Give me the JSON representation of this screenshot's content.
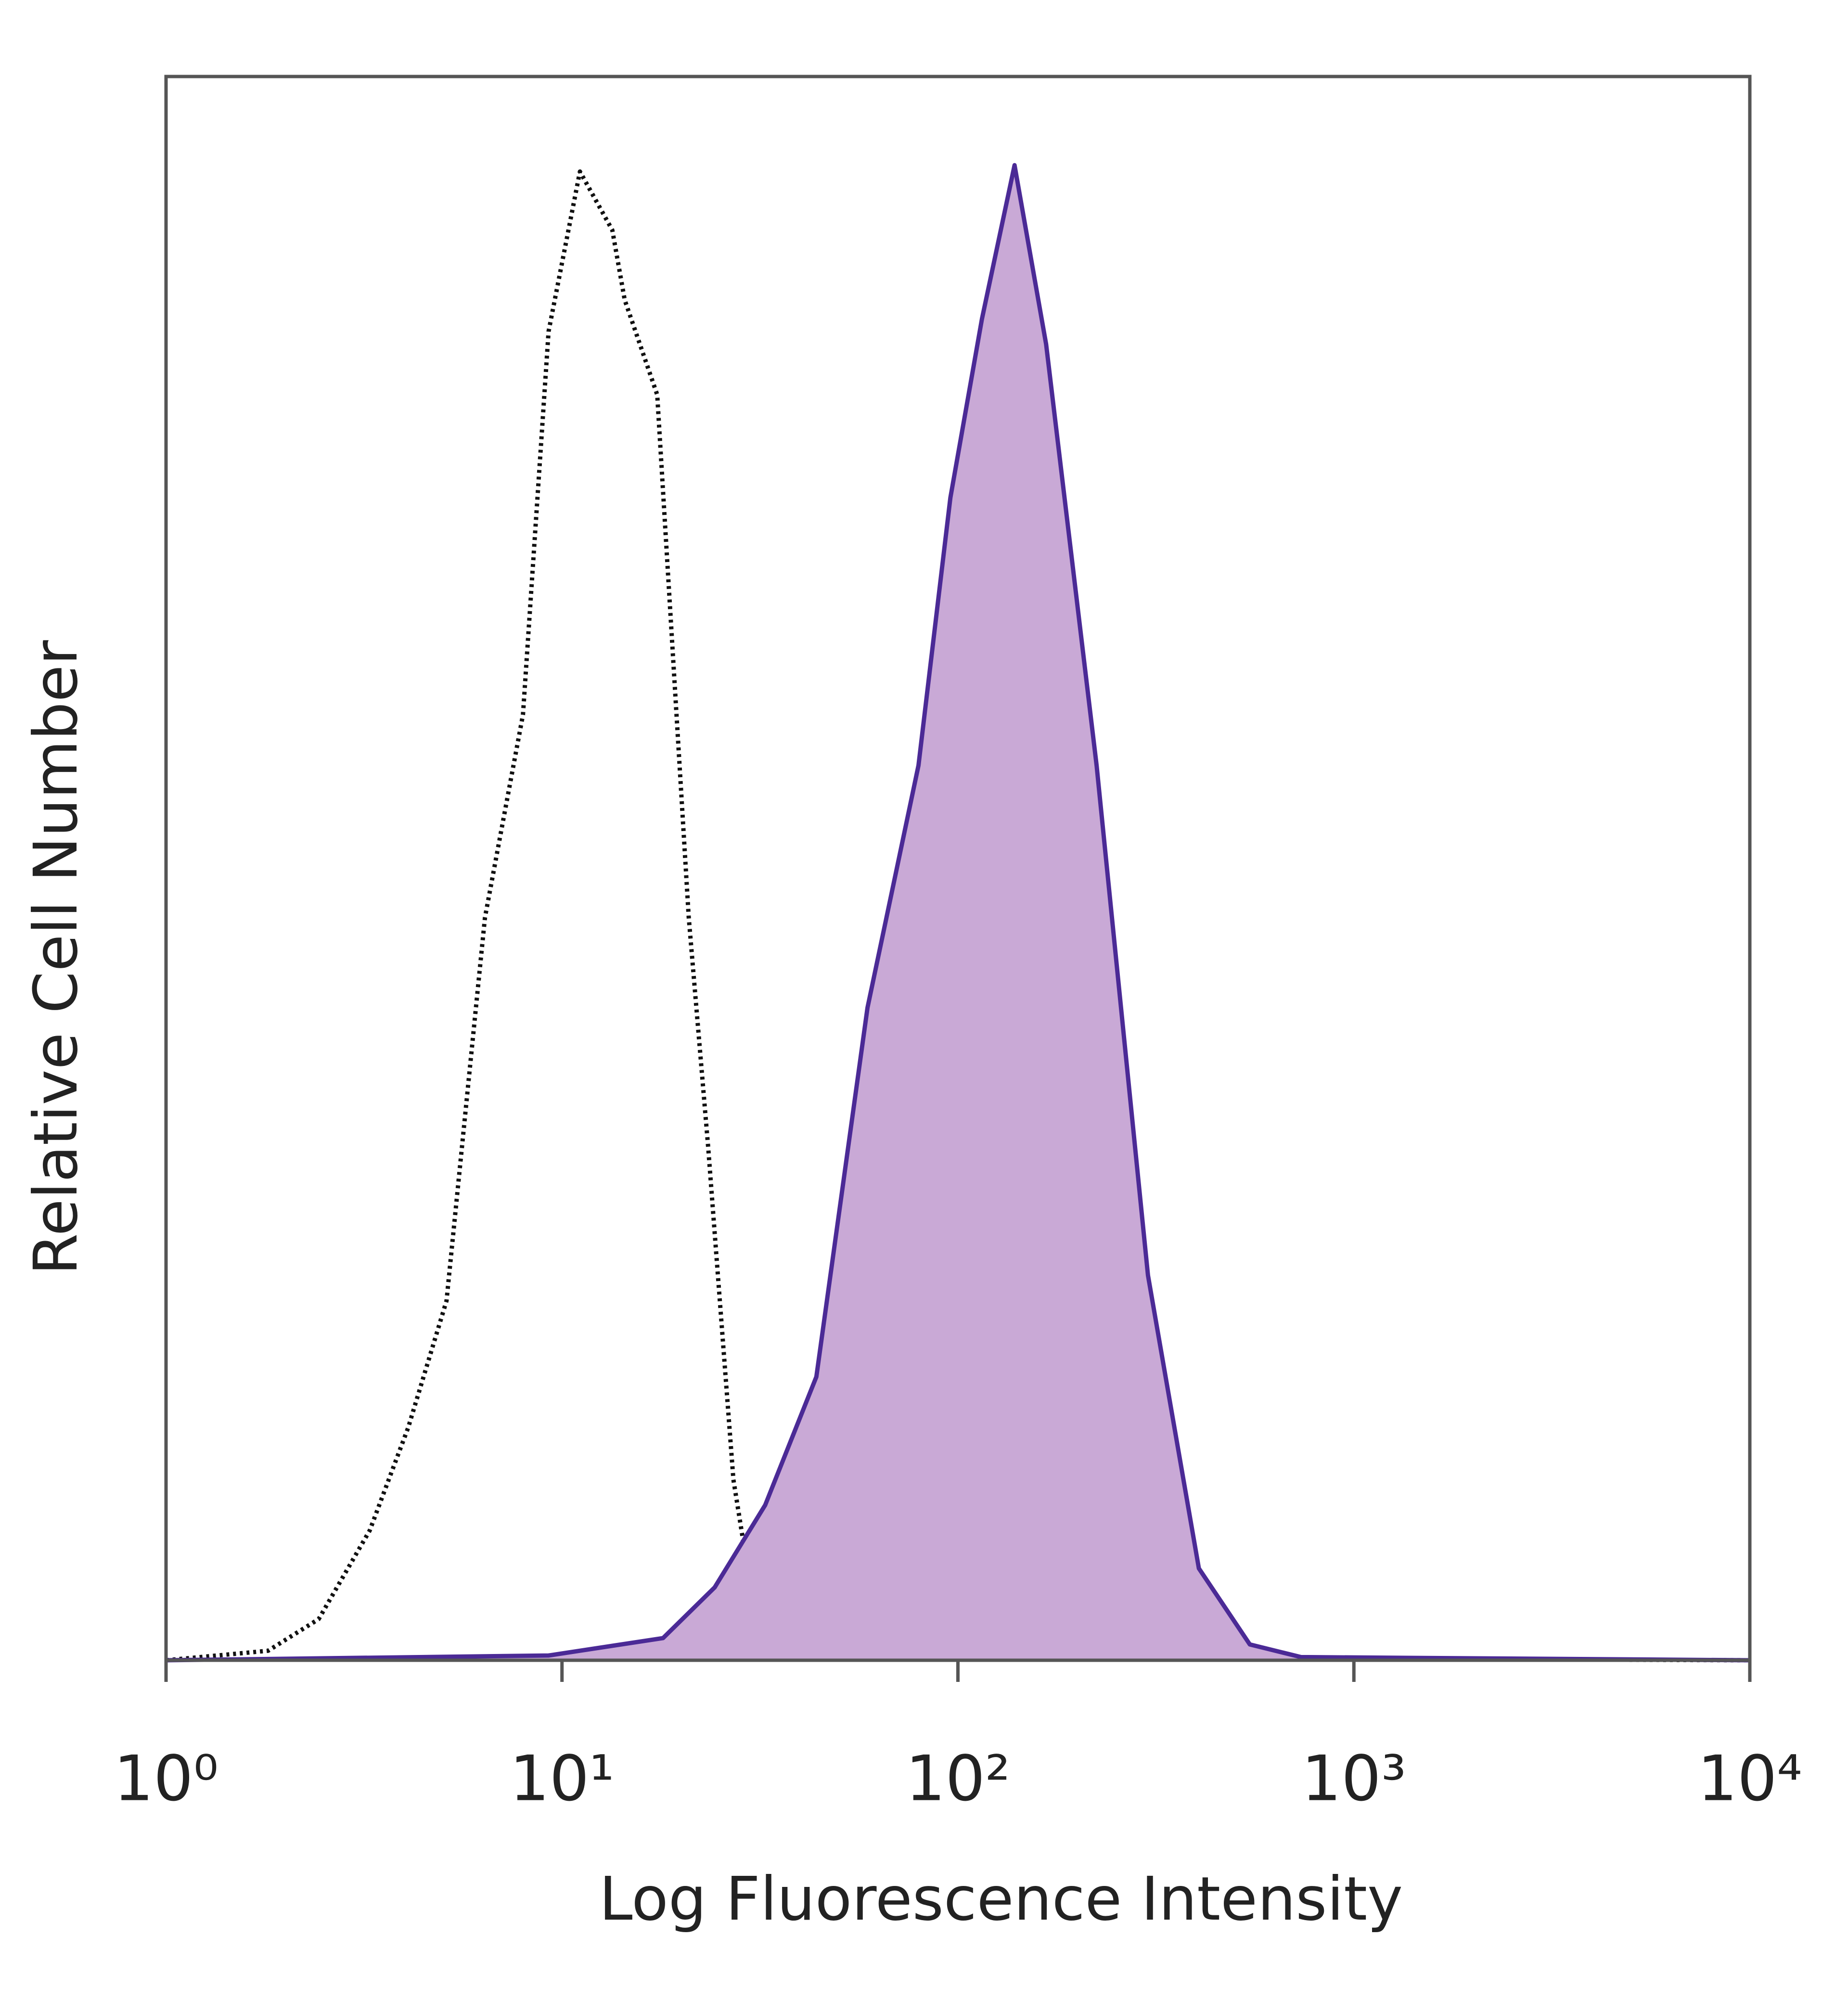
{
  "chart_data": {
    "type": "histogram-line",
    "x_label": "Log Fluorescence Intensity",
    "y_label": "Relative Cell Number",
    "xscale": "log",
    "xlim": [
      1,
      10000
    ],
    "xticks": [
      {
        "value": 1,
        "label": "10⁰"
      },
      {
        "value": 10,
        "label": "10¹"
      },
      {
        "value": 100,
        "label": "10²"
      },
      {
        "value": 1000,
        "label": "10³"
      },
      {
        "value": 10000,
        "label": "10⁴"
      }
    ],
    "ylim": [
      0,
      100
    ],
    "series": [
      {
        "color": "#111111",
        "dash": "dotted",
        "x": [
          1,
          1.81,
          2.43,
          3.27,
          4.09,
          5.11,
          6.39,
          7.97,
          9.25,
          11.1,
          13.4,
          14.4,
          17.4,
          20.9,
          23.4,
          27.1,
          30.3,
          37.9,
          68.5,
          10000
        ],
        "values": [
          0,
          0.6,
          2.6,
          8.2,
          14.7,
          22.7,
          46.9,
          59.7,
          83.9,
          94.0,
          90.3,
          85.9,
          79.9,
          46.9,
          32.4,
          11.4,
          3.8,
          0.6,
          0.2,
          0
        ]
      },
      {
        "color": "#4b2a96",
        "fill_color": "#c9a9d6",
        "x": [
          1,
          9.25,
          18.0,
          24.3,
          32.6,
          43.9,
          59.1,
          79.5,
          95.7,
          115,
          139,
          167,
          224,
          302,
          406,
          546,
          735,
          10000
        ],
        "values": [
          0,
          0.3,
          1.4,
          4.6,
          9.8,
          17.9,
          41.2,
          56.5,
          73.4,
          84.7,
          94.4,
          83.1,
          56.5,
          24.3,
          5.8,
          1.0,
          0.2,
          0
        ]
      }
    ]
  }
}
